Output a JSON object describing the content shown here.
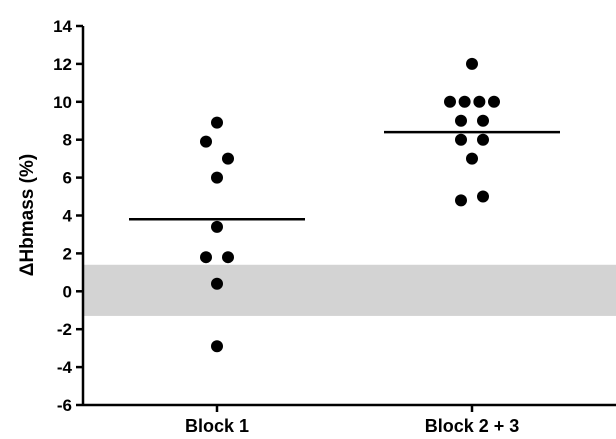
{
  "chart_data": {
    "type": "scatter",
    "title": "",
    "xlabel": "",
    "ylabel": "ΔHbmass (%)",
    "ylim": [
      -6,
      14
    ],
    "yticks": [
      -6,
      -4,
      -2,
      0,
      2,
      4,
      6,
      8,
      10,
      12,
      14
    ],
    "categories": [
      "Block 1",
      "Block 2 + 3"
    ],
    "grid": false,
    "reference_band": {
      "y_min": -1.3,
      "y_max": 1.4,
      "color": "#d3d3d3"
    },
    "mean_lines": [
      3.8,
      8.4
    ],
    "points": [
      {
        "category": "Block 1",
        "offset": 0,
        "y": 8.9
      },
      {
        "category": "Block 1",
        "offset": -1,
        "y": 7.9
      },
      {
        "category": "Block 1",
        "offset": 1,
        "y": 7.0
      },
      {
        "category": "Block 1",
        "offset": 0,
        "y": 6.0
      },
      {
        "category": "Block 1",
        "offset": 0,
        "y": 3.4
      },
      {
        "category": "Block 1",
        "offset": -1,
        "y": 1.8
      },
      {
        "category": "Block 1",
        "offset": 1,
        "y": 1.8
      },
      {
        "category": "Block 1",
        "offset": 0,
        "y": 0.4
      },
      {
        "category": "Block 1",
        "offset": 0,
        "y": -2.9
      },
      {
        "category": "Block 2 + 3",
        "offset": 0,
        "y": 12.0
      },
      {
        "category": "Block 2 + 3",
        "offset": -2,
        "y": 10.0
      },
      {
        "category": "Block 2 + 3",
        "offset": -0.67,
        "y": 10.0
      },
      {
        "category": "Block 2 + 3",
        "offset": 0.67,
        "y": 10.0
      },
      {
        "category": "Block 2 + 3",
        "offset": 2,
        "y": 10.0
      },
      {
        "category": "Block 2 + 3",
        "offset": -1,
        "y": 9.0
      },
      {
        "category": "Block 2 + 3",
        "offset": 1,
        "y": 9.0
      },
      {
        "category": "Block 2 + 3",
        "offset": -1,
        "y": 8.0
      },
      {
        "category": "Block 2 + 3",
        "offset": 1,
        "y": 8.0
      },
      {
        "category": "Block 2 + 3",
        "offset": 0,
        "y": 7.0
      },
      {
        "category": "Block 2 + 3",
        "offset": -1,
        "y": 4.8
      },
      {
        "category": "Block 2 + 3",
        "offset": 1,
        "y": 5.0
      }
    ],
    "colors": {
      "points": "#000000",
      "band": "#d3d3d3",
      "axis": "#000000"
    }
  }
}
